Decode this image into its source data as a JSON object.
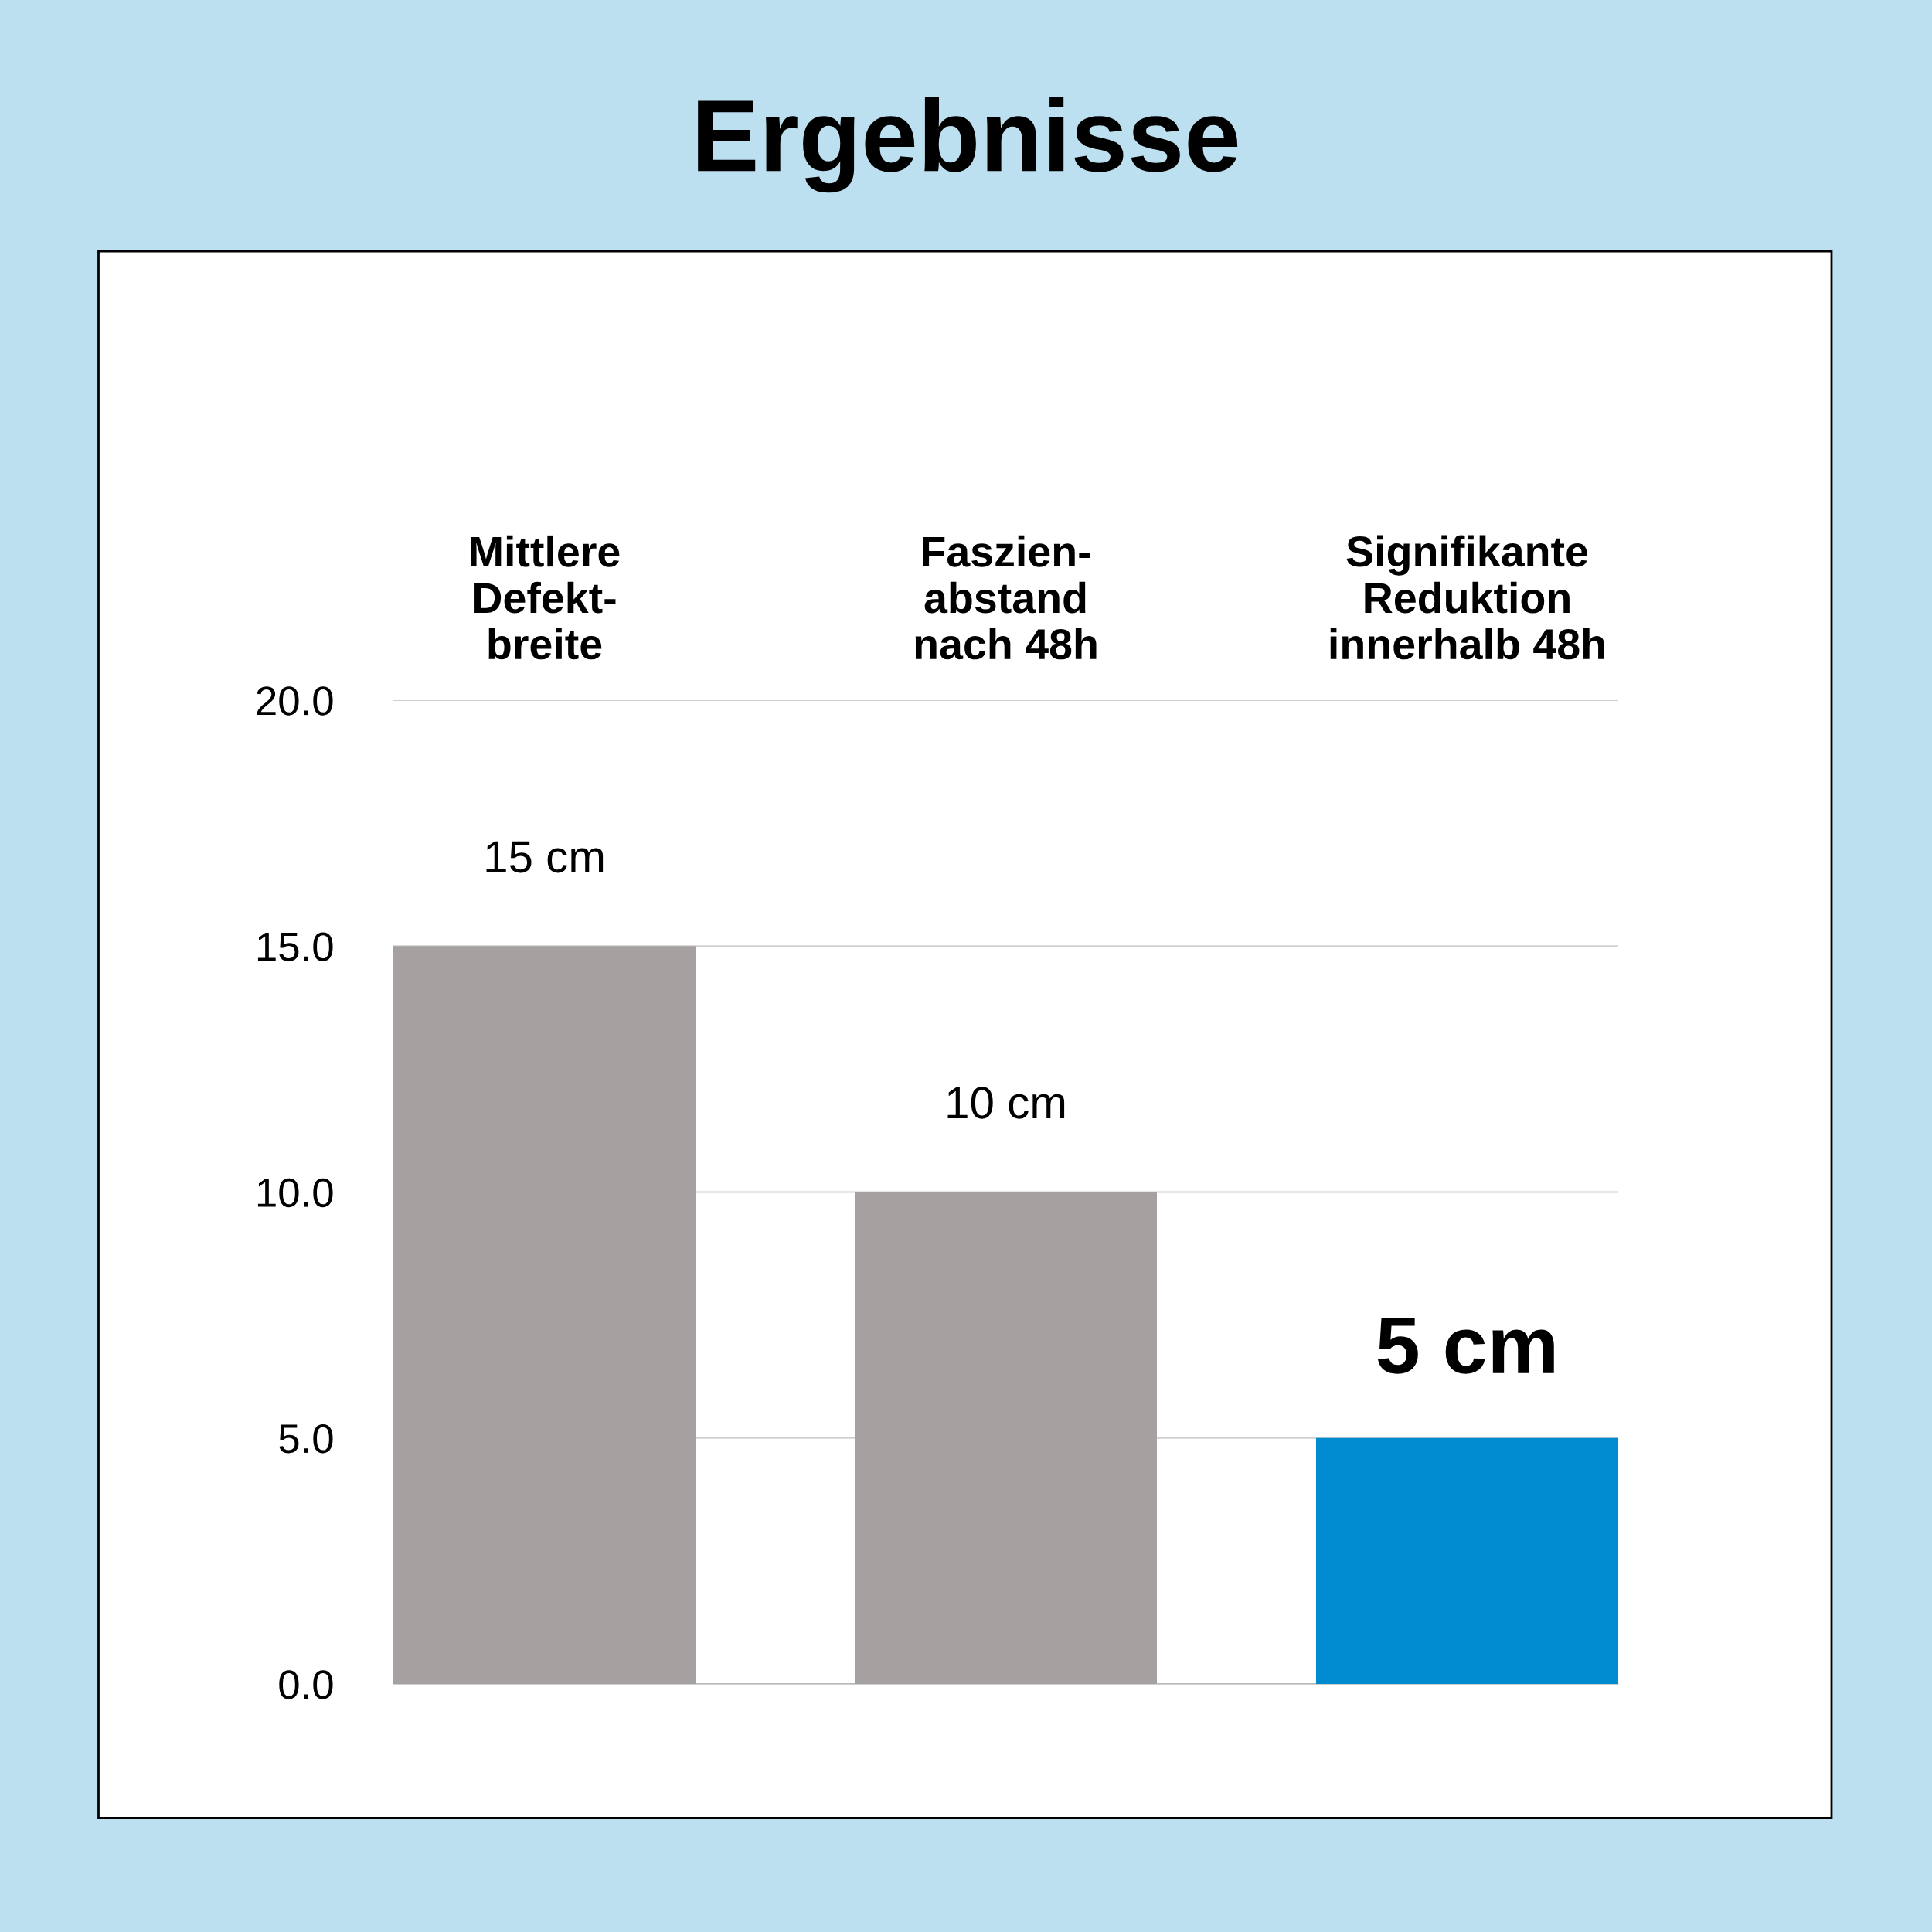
{
  "chart_data": {
    "type": "bar",
    "title": "Ergebnisse",
    "categories": [
      "Mittlere\nDefekt-\nbreite",
      "Faszien-\nabstand\nnach 48h",
      "Signifikante\nReduktion\ninnerhalb 48h"
    ],
    "values": [
      15,
      10,
      5
    ],
    "colors": [
      "#a6a1a1",
      "#a6a1a1",
      "#008ad0"
    ],
    "value_labels": [
      "15 cm",
      "10 cm",
      "5 cm"
    ],
    "ylim": [
      0,
      20
    ],
    "yticks": [
      {
        "value": 0,
        "label": "0.0"
      },
      {
        "value": 5,
        "label": "5.0"
      },
      {
        "value": 10,
        "label": "10.0"
      },
      {
        "value": 15,
        "label": "15.0"
      },
      {
        "value": 20,
        "label": "20.0"
      }
    ],
    "grid": "y"
  }
}
